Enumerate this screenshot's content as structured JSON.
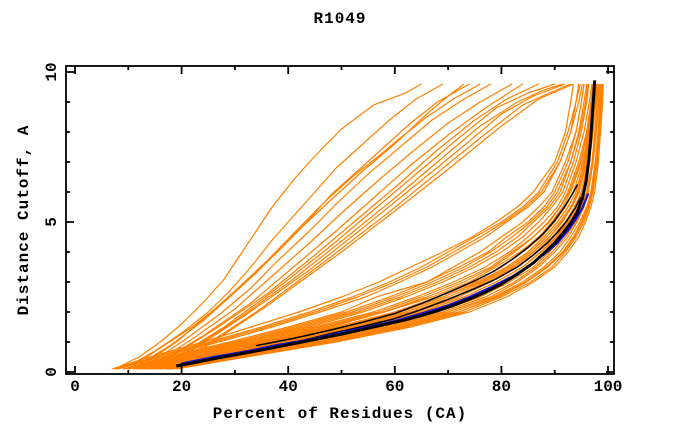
{
  "title": "R1049",
  "chart_data": {
    "type": "line",
    "title": "R1049",
    "xlabel": "Percent of Residues (CA)",
    "ylabel": "Distance Cutoff, A",
    "xlim": [
      -1.7,
      101.1
    ],
    "ylim": [
      -0.07,
      10.2
    ],
    "x_major_ticks": [
      0,
      20,
      40,
      60,
      80,
      100
    ],
    "x_minor_ticks": [
      10,
      30,
      50,
      70,
      90
    ],
    "y_major_ticks": [
      0,
      5,
      10
    ],
    "y_minor_ticks": [
      1,
      2,
      3,
      4,
      6,
      7,
      8,
      9
    ],
    "grid": false,
    "legend": "none",
    "colors": {
      "model_orange": "#ff8000",
      "reference_black": "#000000",
      "highlight_blue": "#1212d4",
      "frame": "#000000",
      "background": "#ffffff"
    },
    "bundle_ys": [
      0.1,
      0.5,
      1,
      1.5,
      2,
      2.5,
      3,
      3.5,
      4,
      4.5,
      5,
      5.5,
      6,
      7,
      8,
      9,
      9.6
    ],
    "orange_bundle_xs": [
      [
        7,
        14,
        24,
        33,
        42,
        50,
        57,
        63,
        69,
        74.5,
        79,
        83,
        86,
        90,
        92,
        93,
        93.5
      ],
      [
        8,
        16,
        27,
        37,
        46,
        54.5,
        61,
        67,
        72,
        77,
        81,
        85,
        88,
        91,
        93,
        94,
        94.5
      ],
      [
        9,
        17,
        29,
        40,
        50,
        56.5,
        66,
        71,
        76,
        80,
        84,
        87,
        89.5,
        92,
        94,
        95,
        95.5
      ],
      [
        10,
        19,
        31,
        43,
        53,
        61,
        68,
        74,
        79,
        83,
        86,
        89,
        91,
        93,
        94.5,
        95.5,
        96
      ],
      [
        11,
        20,
        33,
        45,
        56,
        64,
        71,
        77,
        81.5,
        85,
        88,
        90.5,
        92,
        94,
        95.5,
        96.5,
        97
      ],
      [
        12,
        22,
        35,
        48,
        58,
        67,
        74,
        79,
        83.5,
        87,
        89.5,
        91.5,
        93,
        95,
        96,
        97,
        97.3
      ],
      [
        13,
        23,
        37,
        50,
        61,
        69,
        76,
        81,
        85,
        88,
        90.5,
        92.5,
        94,
        95.5,
        96.5,
        97.2,
        97.5
      ],
      [
        14,
        25,
        39,
        52,
        63,
        71,
        77,
        82,
        86,
        89,
        91.5,
        93,
        94.5,
        96,
        96.8,
        97.5,
        97.8
      ],
      [
        15,
        26,
        41,
        54,
        65,
        73,
        79,
        84,
        87.5,
        90.5,
        92.5,
        94,
        95,
        96.3,
        97,
        97.8,
        98
      ],
      [
        16,
        28,
        43,
        57,
        68,
        76,
        81.5,
        86,
        89,
        91.5,
        93.5,
        95,
        96,
        97,
        97.5,
        98,
        98.2
      ],
      [
        17,
        29,
        45,
        59,
        70,
        78,
        83,
        87,
        90,
        92.5,
        94.2,
        95.5,
        96.3,
        97.2,
        97.8,
        98.3,
        98.5
      ],
      [
        18,
        31,
        47,
        61,
        72,
        79,
        84.5,
        88.5,
        91.5,
        93.5,
        95,
        96.2,
        97,
        97.8,
        98.3,
        98.7,
        98.8
      ],
      [
        19,
        32,
        49,
        63,
        74,
        81,
        86,
        90,
        92.5,
        94.5,
        95.8,
        96.8,
        97.5,
        98.2,
        98.6,
        99,
        99.1
      ],
      [
        9,
        18,
        30,
        41,
        51,
        59,
        66,
        72,
        77.5,
        81,
        85,
        88,
        90,
        92.5,
        94,
        95,
        95.5
      ],
      [
        11,
        21,
        34,
        46,
        57,
        65,
        72,
        78,
        82,
        86,
        89,
        91,
        92.5,
        94.5,
        96,
        96.8,
        97.2
      ],
      [
        13,
        24,
        38,
        51,
        62,
        70,
        76.5,
        81.5,
        85.5,
        88.5,
        91,
        93,
        94.3,
        95.8,
        96.7,
        97.4,
        97.6
      ],
      [
        15,
        27,
        42,
        55,
        66,
        74,
        80,
        85,
        88.5,
        91,
        93,
        94.5,
        95.5,
        96.5,
        97.2,
        97.7,
        97.9
      ],
      [
        17,
        30,
        46,
        60,
        71,
        78.5,
        84,
        88,
        91,
        93,
        94.7,
        96,
        96.8,
        97.6,
        98.1,
        98.5,
        98.6
      ],
      [
        8,
        15,
        25,
        35,
        44,
        52,
        59,
        65,
        70,
        75,
        80,
        84,
        87,
        90.5,
        92.5,
        94,
        94.8
      ],
      [
        10,
        20,
        32,
        44,
        54,
        62,
        69,
        75,
        80,
        84,
        87,
        89.5,
        91.5,
        93.5,
        95,
        96,
        96.4
      ],
      [
        12,
        23,
        36,
        49,
        60,
        68,
        75,
        80,
        84,
        87.5,
        90,
        92,
        93.5,
        95.3,
        96.3,
        97,
        97.4
      ],
      [
        14,
        26,
        40,
        53,
        64,
        72,
        78,
        83,
        86.5,
        89.5,
        92,
        93.7,
        95,
        96.2,
        97,
        97.6,
        97.8
      ],
      [
        16,
        29,
        44,
        58,
        69,
        77,
        82.5,
        86.5,
        89.5,
        92,
        94,
        95.3,
        96.2,
        97.1,
        97.7,
        98.2,
        98.4
      ],
      [
        18,
        32,
        48,
        62,
        73,
        80,
        85.5,
        89.5,
        92,
        94,
        95.5,
        96.5,
        97.2,
        98,
        98.4,
        98.8,
        98.9
      ],
      [
        7.5,
        15,
        26,
        36,
        45,
        53,
        60,
        66,
        71,
        76,
        80.5,
        84.5,
        87.5,
        91,
        93,
        94.5,
        95.2
      ],
      [
        9.5,
        19,
        31,
        42,
        52,
        60,
        67,
        73,
        78,
        82,
        85.5,
        88.5,
        90.5,
        93,
        94.7,
        95.8,
        96.2
      ],
      [
        11.5,
        22,
        35,
        47,
        58,
        66,
        73,
        78.5,
        82.5,
        86,
        88.8,
        91,
        92.8,
        94.8,
        96.2,
        97,
        97.3
      ],
      [
        13.5,
        25,
        39,
        52,
        63,
        71,
        77.5,
        82.5,
        86,
        89,
        91.3,
        93.2,
        94.6,
        96,
        96.9,
        97.5,
        97.7
      ],
      [
        15.5,
        28,
        43,
        56,
        67,
        75,
        80.5,
        85,
        88.3,
        90.8,
        92.8,
        94.3,
        95.3,
        96.4,
        97.1,
        97.6,
        97.8
      ],
      [
        17.5,
        31,
        47,
        61,
        72,
        79.5,
        84.7,
        88.7,
        91.7,
        93.7,
        95.2,
        96.3,
        97,
        97.9,
        98.3,
        98.6,
        98.7
      ],
      [
        12.5,
        24,
        37,
        50,
        61,
        69,
        75.5,
        81,
        85,
        88,
        90.5,
        92.5,
        94,
        95.6,
        96.6,
        97.2,
        97.5
      ],
      [
        14.5,
        27,
        41,
        54,
        65,
        73,
        79,
        84,
        87.3,
        90.2,
        92.3,
        94,
        95.2,
        96.3,
        97,
        97.6,
        97.85
      ]
    ],
    "orange_fan_pts": [
      [
        8,
        0.15,
        12,
        0.5,
        16,
        1.0,
        20,
        1.6,
        24,
        2.3,
        28,
        3.1,
        31,
        3.9,
        34,
        4.7,
        37,
        5.5,
        41,
        6.4,
        45,
        7.2,
        50,
        8.1,
        56,
        8.9,
        62,
        9.3,
        65,
        9.6
      ],
      [
        10,
        0.2,
        15,
        0.7,
        20,
        1.3,
        25,
        2.0,
        29,
        2.7,
        33,
        3.5,
        37,
        4.4,
        41,
        5.2,
        45,
        6.0,
        49,
        6.8,
        54,
        7.6,
        59,
        8.4,
        64,
        9.1,
        69,
        9.6
      ],
      [
        12,
        0.25,
        18,
        0.9,
        24,
        1.7,
        29,
        2.5,
        34,
        3.3,
        39,
        4.2,
        44,
        5.1,
        48,
        5.9,
        53,
        6.7,
        58,
        7.5,
        63,
        8.3,
        68,
        9.0,
        74,
        9.6
      ],
      [
        14,
        0.3,
        20,
        1.0,
        27,
        1.9,
        33,
        2.8,
        38,
        3.7,
        44,
        4.7,
        49,
        5.6,
        55,
        6.6,
        61,
        7.5,
        67,
        8.4,
        73,
        9.1,
        78,
        9.6
      ],
      [
        15,
        0.3,
        22,
        1.1,
        30,
        2.1,
        37,
        3.2,
        44,
        4.3,
        50,
        5.3,
        57,
        6.4,
        63,
        7.3,
        70,
        8.3,
        76,
        9.0,
        82,
        9.6
      ],
      [
        16,
        0.35,
        24,
        1.2,
        33,
        2.3,
        41,
        3.5,
        49,
        4.7,
        56,
        5.8,
        63,
        6.9,
        70,
        7.9,
        77,
        8.8,
        84,
        9.6
      ],
      [
        17,
        0.4,
        26,
        1.4,
        36,
        2.6,
        45,
        3.9,
        53,
        5.1,
        61,
        6.3,
        68,
        7.4,
        75,
        8.4,
        81,
        9.1,
        87,
        9.6
      ],
      [
        18,
        0.4,
        28,
        1.5,
        38,
        2.8,
        48,
        4.2,
        56,
        5.4,
        64,
        6.6,
        72,
        7.8,
        79,
        8.8,
        85,
        9.3,
        90,
        9.6
      ],
      [
        19,
        0.45,
        30,
        1.7,
        41,
        3.1,
        51,
        4.5,
        60,
        5.8,
        68,
        7.0,
        76,
        8.2,
        83,
        9.0,
        88,
        9.4,
        91.5,
        9.6
      ],
      [
        20,
        0.5,
        32,
        1.9,
        44,
        3.4,
        54,
        4.8,
        63,
        6.1,
        72,
        7.4,
        80,
        8.6,
        86,
        9.2,
        92,
        9.6
      ],
      [
        21,
        0.5,
        34,
        2.0,
        47,
        3.7,
        58,
        5.2,
        67,
        6.5,
        76,
        7.8,
        84,
        8.9,
        89,
        9.3,
        93,
        9.6
      ],
      [
        22,
        0.55,
        36,
        2.2,
        50,
        4.0,
        61,
        5.5,
        71,
        6.9,
        80,
        8.2,
        87,
        9.1,
        93.5,
        9.6
      ],
      [
        13,
        0.28,
        19,
        1.0,
        25,
        1.9,
        30,
        2.7,
        36,
        3.7,
        42,
        4.8,
        47,
        5.7,
        52,
        6.5,
        57,
        7.2,
        61,
        7.8,
        66,
        8.5,
        71,
        9.1,
        76,
        9.6
      ],
      [
        11,
        0.22,
        16,
        0.8,
        22,
        1.5,
        27,
        2.2,
        32,
        3.0,
        38,
        4.0,
        43,
        4.9,
        49,
        5.9,
        54,
        6.7,
        60,
        7.6,
        66,
        8.6,
        70,
        9.2,
        73,
        9.6
      ]
    ],
    "black_thin_pts": [
      [
        30,
        0.63,
        36,
        0.82,
        42,
        1.02,
        48,
        1.28,
        54,
        1.52,
        60,
        1.78,
        65,
        2.08,
        70,
        2.42,
        75,
        2.78,
        79,
        3.1,
        83,
        3.5,
        86,
        3.9,
        88.5,
        4.28,
        90.5,
        4.65,
        92.3,
        5.05,
        93.8,
        5.45,
        94.9,
        5.82
      ],
      [
        34,
        0.88,
        41,
        1.12,
        48,
        1.4,
        54,
        1.66,
        60,
        1.95,
        65,
        2.28,
        70,
        2.65,
        74.5,
        3.0,
        78.5,
        3.35,
        82,
        3.75,
        85,
        4.15,
        87.8,
        4.6,
        90,
        5.05,
        91.8,
        5.5,
        93.2,
        5.9,
        94.3,
        6.25
      ]
    ],
    "blue_pts": [
      20,
      0.28,
      26,
      0.5,
      32,
      0.68,
      38,
      0.9,
      44,
      1.08,
      50,
      1.32,
      55,
      1.5,
      60,
      1.7,
      65,
      1.95,
      70,
      2.22,
      74,
      2.5,
      78,
      2.82,
      82,
      3.18,
      85,
      3.52,
      88,
      3.92,
      90.5,
      4.3,
      92.5,
      4.72,
      94,
      5.1,
      95.3,
      5.5,
      96.3,
      5.95
    ],
    "black_main_pts": [
      19,
      0.2,
      22,
      0.3,
      26,
      0.44,
      30,
      0.57,
      34,
      0.7,
      38,
      0.84,
      42,
      0.98,
      46,
      1.12,
      50,
      1.26,
      54,
      1.42,
      58,
      1.58,
      62,
      1.74,
      65,
      1.88,
      68,
      2.04,
      71,
      2.22,
      74,
      2.43,
      77,
      2.66,
      80,
      2.93,
      83,
      3.26,
      86,
      3.64,
      88,
      3.96,
      90,
      4.3,
      91.5,
      4.62,
      93,
      4.97,
      94.2,
      5.32,
      95.2,
      5.78,
      95.9,
      6.35,
      96.4,
      7.05,
      96.8,
      7.85,
      97.1,
      8.65,
      97.35,
      9.3,
      97.5,
      9.72
    ]
  }
}
